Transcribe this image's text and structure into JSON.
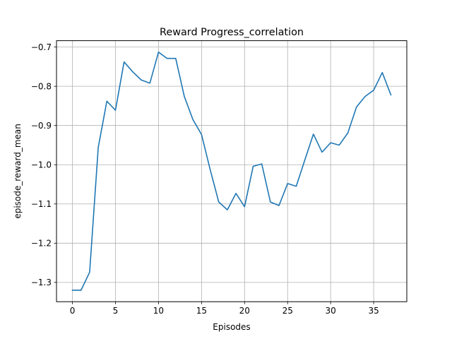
{
  "chart_data": {
    "type": "line",
    "title": "Reward Progress_correlation",
    "xlabel": "Episodes",
    "ylabel": "episode_reward_mean",
    "xlim": [
      -1.85,
      38.85
    ],
    "ylim": [
      -1.3492,
      -0.6838
    ],
    "grid": true,
    "line_color": "#1f77b4",
    "xticks": [
      {
        "v": 0,
        "label": "0"
      },
      {
        "v": 5,
        "label": "5"
      },
      {
        "v": 10,
        "label": "10"
      },
      {
        "v": 15,
        "label": "15"
      },
      {
        "v": 20,
        "label": "20"
      },
      {
        "v": 25,
        "label": "25"
      },
      {
        "v": 30,
        "label": "30"
      },
      {
        "v": 35,
        "label": "35"
      }
    ],
    "yticks": [
      {
        "v": -1.3,
        "label": "−1.3"
      },
      {
        "v": -1.2,
        "label": "−1.2"
      },
      {
        "v": -1.1,
        "label": "−1.1"
      },
      {
        "v": -1.0,
        "label": "−1.0"
      },
      {
        "v": -0.9,
        "label": "−0.9"
      },
      {
        "v": -0.8,
        "label": "−0.8"
      },
      {
        "v": -0.7,
        "label": "−0.7"
      }
    ],
    "x": [
      0,
      1,
      2,
      3,
      4,
      5,
      6,
      7,
      8,
      9,
      10,
      11,
      12,
      13,
      14,
      15,
      16,
      17,
      18,
      19,
      20,
      21,
      22,
      23,
      24,
      25,
      26,
      27,
      28,
      29,
      30,
      31,
      32,
      33,
      34,
      35,
      36,
      37
    ],
    "values": [
      -1.32,
      -1.32,
      -1.274,
      -0.956,
      -0.838,
      -0.861,
      -0.738,
      -0.763,
      -0.784,
      -0.792,
      -0.713,
      -0.729,
      -0.729,
      -0.826,
      -0.885,
      -0.923,
      -1.012,
      -1.095,
      -1.115,
      -1.073,
      -1.107,
      -1.004,
      -0.998,
      -1.095,
      -1.104,
      -1.048,
      -1.055,
      -0.988,
      -0.922,
      -0.968,
      -0.944,
      -0.95,
      -0.919,
      -0.853,
      -0.826,
      -0.81,
      -0.765,
      -0.822
    ]
  }
}
